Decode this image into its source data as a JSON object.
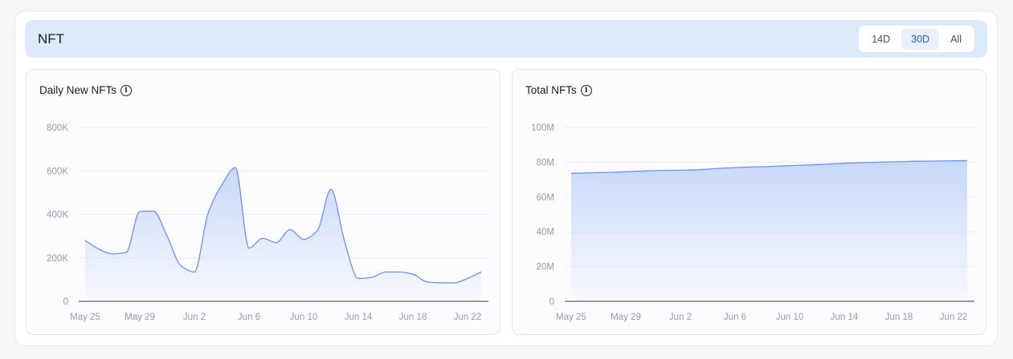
{
  "header": {
    "title": "NFT",
    "ranges": [
      "14D",
      "30D",
      "All"
    ],
    "active_range": "30D"
  },
  "colors": {
    "line": "#6b93f5",
    "fill": "#c8d8fa",
    "header_bg": "#dde9fd",
    "active": "#2f55d4"
  },
  "chart_data": [
    {
      "type": "area",
      "title": "Daily New NFTs",
      "title_icon": "info-icon",
      "x_ticks": [
        "May 25",
        "May 29",
        "Jun 2",
        "Jun 6",
        "Jun 10",
        "Jun 14",
        "Jun 18",
        "Jun 22"
      ],
      "y_ticks": [
        "0",
        "200K",
        "400K",
        "600K",
        "800K"
      ],
      "ylim": [
        0,
        800000
      ],
      "grid": true,
      "x_range": [
        "May 25",
        "Jun 23"
      ],
      "values": [
        280000,
        240000,
        218000,
        225000,
        413000,
        415000,
        300000,
        165000,
        135000,
        405000,
        535000,
        615000,
        245000,
        290000,
        270000,
        330000,
        285000,
        325000,
        515000,
        275000,
        105000,
        110000,
        135000,
        135000,
        125000,
        90000,
        85000,
        85000,
        105000,
        135000
      ]
    },
    {
      "type": "area",
      "title": "Total NFTs",
      "title_icon": "info-icon",
      "x_ticks": [
        "May 25",
        "May 29",
        "Jun 2",
        "Jun 6",
        "Jun 10",
        "Jun 14",
        "Jun 18",
        "Jun 22"
      ],
      "y_ticks": [
        "0",
        "20M",
        "40M",
        "60M",
        "80M",
        "100M"
      ],
      "ylim": [
        0,
        100000000
      ],
      "grid": true,
      "x_range": [
        "May 25",
        "Jun 23"
      ],
      "values": [
        73600000,
        73800000,
        74000000,
        74200000,
        74500000,
        74800000,
        75100000,
        75300000,
        75400000,
        75600000,
        76000000,
        76500000,
        76900000,
        77200000,
        77400000,
        77700000,
        78000000,
        78300000,
        78600000,
        79000000,
        79400000,
        79700000,
        79900000,
        80100000,
        80300000,
        80500000,
        80600000,
        80700000,
        80800000,
        80900000
      ]
    }
  ]
}
